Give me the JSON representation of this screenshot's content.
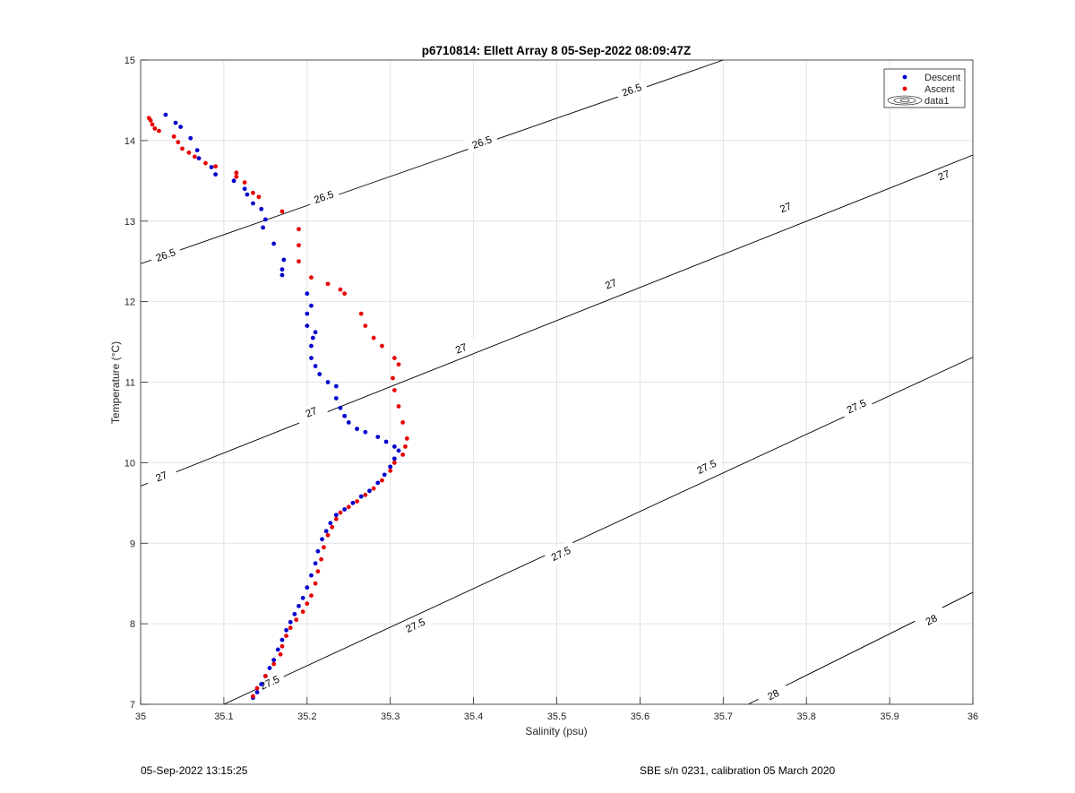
{
  "footer": {
    "timestamp": "05-Sep-2022 13:15:25",
    "calibration": "SBE s/n 0231, calibration 05 March 2020"
  },
  "chart_data": {
    "type": "scatter",
    "title": "p6710814: Ellett Array 8 05-Sep-2022 08:09:47Z",
    "xlabel": "Salinity (psu)",
    "ylabel": "Temperature (°C)",
    "xlim": [
      35,
      36
    ],
    "ylim": [
      7,
      15
    ],
    "xticks": [
      "35",
      "35.1",
      "35.2",
      "35.3",
      "35.4",
      "35.5",
      "35.6",
      "35.7",
      "35.8",
      "35.9",
      "36"
    ],
    "yticks": [
      "7",
      "8",
      "9",
      "10",
      "11",
      "12",
      "13",
      "14",
      "15"
    ],
    "grid": true,
    "legend_position": "top-right",
    "colors": {
      "descent": "#0000cc",
      "ascent": "#e60000",
      "contour": "#000000"
    },
    "legend": [
      {
        "label": "Descent",
        "marker": "dot",
        "color": "#0000cc"
      },
      {
        "label": "Ascent",
        "marker": "dot",
        "color": "#e60000"
      },
      {
        "label": "data1",
        "marker": "contour-icon",
        "color": "#000000"
      }
    ],
    "contours": [
      {
        "level": "26.5",
        "points": [
          [
            35.0,
            12.47
          ],
          [
            35.7,
            15.0
          ]
        ],
        "labels": [
          [
            35.03,
            12.58
          ],
          [
            35.22,
            13.3
          ],
          [
            35.41,
            13.98
          ],
          [
            35.59,
            14.63
          ]
        ]
      },
      {
        "level": "27",
        "points": [
          [
            35.0,
            9.71
          ],
          [
            36.0,
            13.82
          ]
        ],
        "labels": [
          [
            35.025,
            9.83
          ],
          [
            35.205,
            10.63
          ],
          [
            35.385,
            11.42
          ],
          [
            35.565,
            12.22
          ],
          [
            35.775,
            13.17
          ],
          [
            35.965,
            13.57
          ]
        ]
      },
      {
        "level": "27.5",
        "points": [
          [
            35.1,
            7.0
          ],
          [
            36.0,
            11.31
          ]
        ],
        "labels": [
          [
            35.155,
            7.27
          ],
          [
            35.33,
            7.98
          ],
          [
            35.505,
            8.87
          ],
          [
            35.68,
            9.95
          ],
          [
            35.86,
            10.7
          ]
        ]
      },
      {
        "level": "28",
        "points": [
          [
            35.73,
            7.0
          ],
          [
            36.0,
            8.39
          ]
        ],
        "labels": [
          [
            35.76,
            7.12
          ],
          [
            35.95,
            8.05
          ]
        ]
      }
    ],
    "series": [
      {
        "name": "Descent",
        "points": [
          [
            35.135,
            7.08
          ],
          [
            35.14,
            7.15
          ],
          [
            35.145,
            7.25
          ],
          [
            35.15,
            7.35
          ],
          [
            35.155,
            7.45
          ],
          [
            35.16,
            7.55
          ],
          [
            35.165,
            7.68
          ],
          [
            35.17,
            7.8
          ],
          [
            35.175,
            7.92
          ],
          [
            35.18,
            8.02
          ],
          [
            35.185,
            8.12
          ],
          [
            35.19,
            8.22
          ],
          [
            35.195,
            8.32
          ],
          [
            35.2,
            8.45
          ],
          [
            35.205,
            8.6
          ],
          [
            35.21,
            8.75
          ],
          [
            35.213,
            8.9
          ],
          [
            35.218,
            9.05
          ],
          [
            35.223,
            9.15
          ],
          [
            35.228,
            9.25
          ],
          [
            35.235,
            9.35
          ],
          [
            35.245,
            9.42
          ],
          [
            35.255,
            9.5
          ],
          [
            35.265,
            9.58
          ],
          [
            35.275,
            9.65
          ],
          [
            35.285,
            9.75
          ],
          [
            35.293,
            9.85
          ],
          [
            35.3,
            9.95
          ],
          [
            35.305,
            10.05
          ],
          [
            35.31,
            10.15
          ],
          [
            35.305,
            10.2
          ],
          [
            35.295,
            10.26
          ],
          [
            35.285,
            10.32
          ],
          [
            35.27,
            10.38
          ],
          [
            35.26,
            10.42
          ],
          [
            35.25,
            10.5
          ],
          [
            35.245,
            10.58
          ],
          [
            35.24,
            10.68
          ],
          [
            35.235,
            10.8
          ],
          [
            35.235,
            10.95
          ],
          [
            35.225,
            11.0
          ],
          [
            35.215,
            11.1
          ],
          [
            35.21,
            11.2
          ],
          [
            35.205,
            11.3
          ],
          [
            35.205,
            11.45
          ],
          [
            35.207,
            11.55
          ],
          [
            35.21,
            11.62
          ],
          [
            35.2,
            11.7
          ],
          [
            35.2,
            11.85
          ],
          [
            35.205,
            11.95
          ],
          [
            35.2,
            12.1
          ],
          [
            35.17,
            12.33
          ],
          [
            35.17,
            12.4
          ],
          [
            35.172,
            12.52
          ],
          [
            35.16,
            12.72
          ],
          [
            35.147,
            12.92
          ],
          [
            35.15,
            13.02
          ],
          [
            35.145,
            13.15
          ],
          [
            35.135,
            13.22
          ],
          [
            35.128,
            13.33
          ],
          [
            35.125,
            13.4
          ],
          [
            35.112,
            13.5
          ],
          [
            35.09,
            13.58
          ],
          [
            35.085,
            13.67
          ],
          [
            35.07,
            13.78
          ],
          [
            35.068,
            13.88
          ],
          [
            35.06,
            14.03
          ],
          [
            35.048,
            14.17
          ],
          [
            35.042,
            14.22
          ],
          [
            35.03,
            14.32
          ]
        ]
      },
      {
        "name": "Ascent",
        "points": [
          [
            35.135,
            7.1
          ],
          [
            35.14,
            7.2
          ],
          [
            35.15,
            7.35
          ],
          [
            35.16,
            7.5
          ],
          [
            35.168,
            7.62
          ],
          [
            35.17,
            7.72
          ],
          [
            35.175,
            7.85
          ],
          [
            35.18,
            7.95
          ],
          [
            35.187,
            8.05
          ],
          [
            35.195,
            8.15
          ],
          [
            35.2,
            8.25
          ],
          [
            35.205,
            8.35
          ],
          [
            35.21,
            8.5
          ],
          [
            35.213,
            8.65
          ],
          [
            35.217,
            8.8
          ],
          [
            35.22,
            8.95
          ],
          [
            35.225,
            9.1
          ],
          [
            35.23,
            9.2
          ],
          [
            35.235,
            9.3
          ],
          [
            35.24,
            9.38
          ],
          [
            35.25,
            9.45
          ],
          [
            35.26,
            9.52
          ],
          [
            35.27,
            9.6
          ],
          [
            35.28,
            9.68
          ],
          [
            35.29,
            9.78
          ],
          [
            35.3,
            9.9
          ],
          [
            35.305,
            10.0
          ],
          [
            35.315,
            10.1
          ],
          [
            35.318,
            10.2
          ],
          [
            35.32,
            10.3
          ],
          [
            35.315,
            10.5
          ],
          [
            35.31,
            10.7
          ],
          [
            35.305,
            10.9
          ],
          [
            35.303,
            11.05
          ],
          [
            35.31,
            11.22
          ],
          [
            35.305,
            11.3
          ],
          [
            35.29,
            11.45
          ],
          [
            35.28,
            11.55
          ],
          [
            35.27,
            11.7
          ],
          [
            35.265,
            11.85
          ],
          [
            35.245,
            12.1
          ],
          [
            35.24,
            12.15
          ],
          [
            35.225,
            12.22
          ],
          [
            35.205,
            12.3
          ],
          [
            35.19,
            12.5
          ],
          [
            35.19,
            12.7
          ],
          [
            35.19,
            12.9
          ],
          [
            35.17,
            13.12
          ],
          [
            35.142,
            13.3
          ],
          [
            35.135,
            13.35
          ],
          [
            35.125,
            13.48
          ],
          [
            35.115,
            13.55
          ],
          [
            35.115,
            13.6
          ],
          [
            35.09,
            13.68
          ],
          [
            35.078,
            13.72
          ],
          [
            35.065,
            13.8
          ],
          [
            35.058,
            13.85
          ],
          [
            35.05,
            13.9
          ],
          [
            35.045,
            13.98
          ],
          [
            35.04,
            14.05
          ],
          [
            35.022,
            14.12
          ],
          [
            35.017,
            14.15
          ],
          [
            35.014,
            14.2
          ],
          [
            35.012,
            14.25
          ],
          [
            35.01,
            14.28
          ]
        ]
      }
    ]
  }
}
